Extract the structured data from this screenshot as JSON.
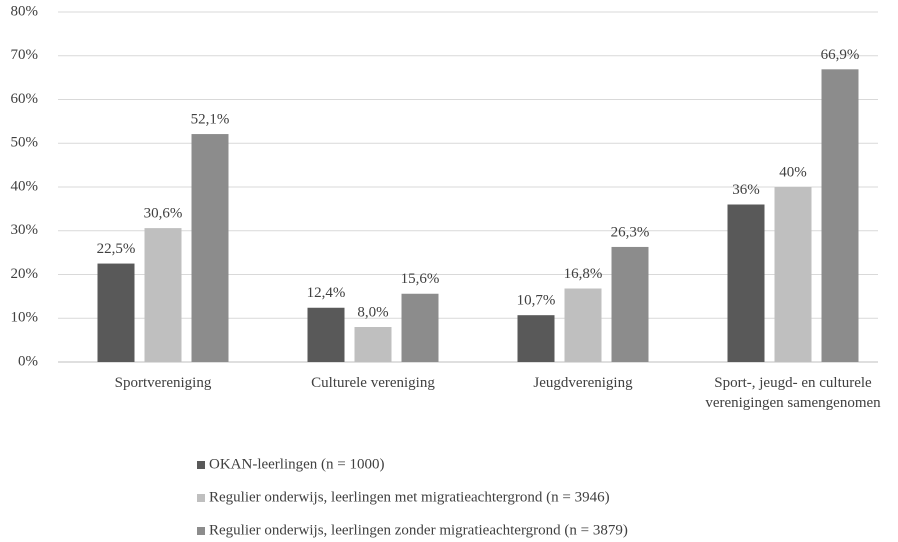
{
  "chart_data": {
    "type": "bar",
    "categories": [
      "Sportvereniging",
      "Culturele vereniging",
      "Jeugdvereniging",
      "Sport-, jeugd- en culturele verenigingen samengenomen"
    ],
    "series": [
      {
        "name": "OKAN-leerlingen (n = 1000)",
        "color": "#595959",
        "values": [
          22.5,
          12.4,
          10.7,
          36
        ],
        "value_labels": [
          "22,5%",
          "12,4%",
          "10,7%",
          "36%"
        ]
      },
      {
        "name": "Regulier onderwijs, leerlingen met migratieachtergrond (n = 3946)",
        "color": "#bfbfbf",
        "values": [
          30.6,
          8.0,
          16.8,
          40
        ],
        "value_labels": [
          "30,6%",
          "8,0%",
          "16,8%",
          "40%"
        ]
      },
      {
        "name": "Regulier onderwijs, leerlingen zonder migratieachtergrond (n = 3879)",
        "color": "#8c8c8c",
        "values": [
          52.1,
          15.6,
          26.3,
          66.9
        ],
        "value_labels": [
          "52,1%",
          "15,6%",
          "26,3%",
          "66,9%"
        ]
      }
    ],
    "ylim": [
      0,
      80
    ],
    "yticks": [
      {
        "value": 0,
        "label": "0%"
      },
      {
        "value": 10,
        "label": "10%"
      },
      {
        "value": 20,
        "label": "20%"
      },
      {
        "value": 30,
        "label": "30%"
      },
      {
        "value": 40,
        "label": "40%"
      },
      {
        "value": 50,
        "label": "50%"
      },
      {
        "value": 60,
        "label": "60%"
      },
      {
        "value": 70,
        "label": "70%"
      },
      {
        "value": 80,
        "label": "80%"
      }
    ],
    "grid": true,
    "legend": "bottom"
  }
}
